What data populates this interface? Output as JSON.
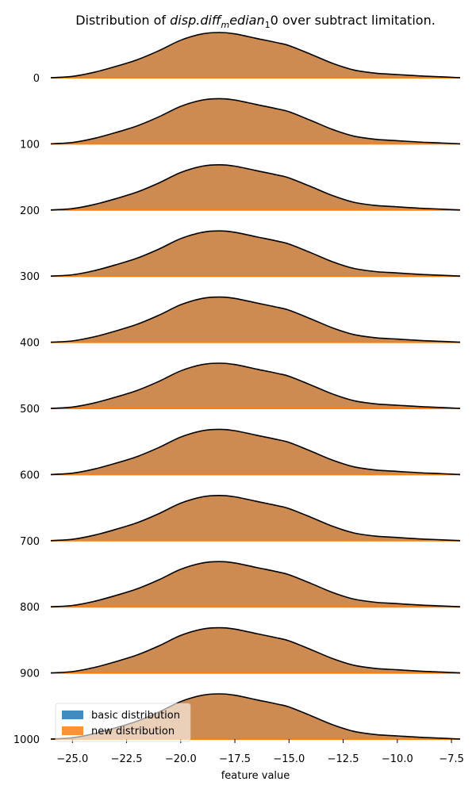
{
  "chart_data": {
    "type": "area",
    "title_parts": {
      "prefix": "Distribution of ",
      "math_base": "disp.diff",
      "math_sub1": "m",
      "math_mid": "edian",
      "math_sub2": "1",
      "suffix": "0 over subtract limitation."
    },
    "xlabel": "feature value",
    "ylabel": "",
    "xlim": [
      -26.0,
      -7.1
    ],
    "x_ticks": [
      -25.0,
      -22.5,
      -20.0,
      -17.5,
      -15.0,
      -12.5,
      -10.0,
      -7.5
    ],
    "x_tick_labels": [
      "−25.0",
      "−22.5",
      "−20.0",
      "−17.5",
      "−15.0",
      "−12.5",
      "−10.0",
      "−7.5"
    ],
    "ridge_offsets": [
      0,
      100,
      200,
      300,
      400,
      500,
      600,
      700,
      800,
      900,
      1000
    ],
    "ridge_labels": [
      "0",
      "100",
      "200",
      "300",
      "400",
      "500",
      "600",
      "700",
      "800",
      "900",
      "1000"
    ],
    "ridge_peak_height": 57,
    "density_curve": {
      "x": [
        -26.0,
        -25.0,
        -24.0,
        -23.0,
        -22.0,
        -21.0,
        -20.0,
        -19.0,
        -18.2,
        -17.5,
        -16.5,
        -15.5,
        -15.0,
        -14.0,
        -13.0,
        -12.0,
        -11.0,
        -10.0,
        -9.0,
        -8.0,
        -7.1
      ],
      "density": [
        0.0,
        0.03,
        0.12,
        0.25,
        0.4,
        0.6,
        0.83,
        0.97,
        1.0,
        0.97,
        0.87,
        0.77,
        0.71,
        0.52,
        0.32,
        0.17,
        0.1,
        0.07,
        0.04,
        0.02,
        0.0
      ]
    },
    "series": [
      {
        "name": "basic distribution",
        "color": "#1f77b4"
      },
      {
        "name": "new distribution",
        "color": "#ff7f0e"
      }
    ],
    "fill_color": "#cd8b52",
    "outline_color": "#000000",
    "legend_position": "bottom-left",
    "grid": false
  }
}
